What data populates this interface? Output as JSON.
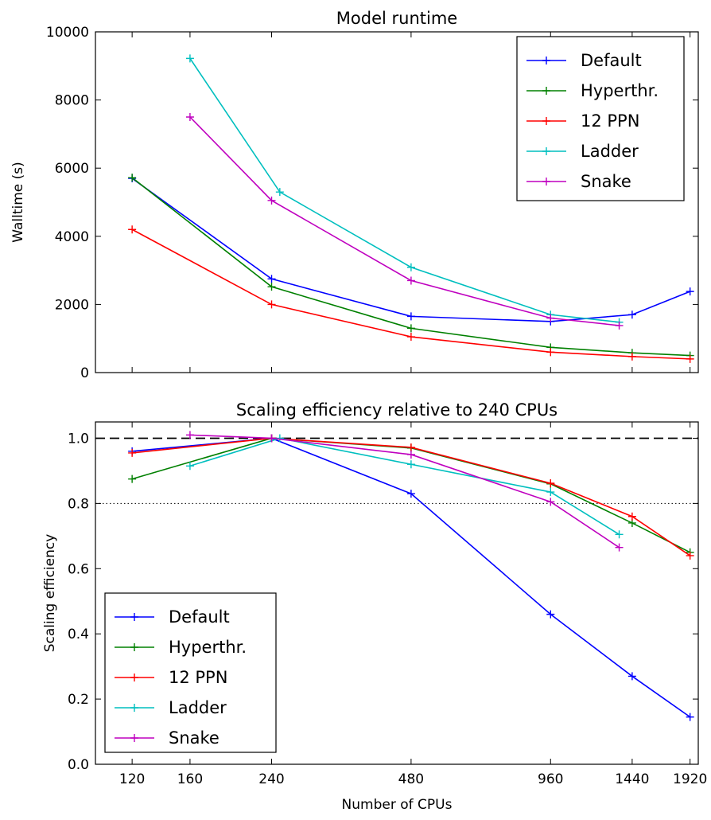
{
  "chart_data": [
    {
      "type": "line",
      "title": "Model runtime",
      "xlabel": "",
      "ylabel": "Walltime (s)",
      "xscale": "log",
      "xlim": [
        100,
        2000
      ],
      "ylim": [
        0,
        10000
      ],
      "xticks": [
        120,
        160,
        240,
        480,
        960,
        1440,
        1920
      ],
      "xticklabels_shown": false,
      "yticks": [
        0,
        2000,
        4000,
        6000,
        8000,
        10000
      ],
      "grid": false,
      "legend": "top-right",
      "series": [
        {
          "name": "Default",
          "color": "#0000ff",
          "x": [
            120,
            240,
            480,
            960,
            1440,
            1920
          ],
          "y": [
            5700,
            2750,
            1650,
            1500,
            1700,
            2380
          ]
        },
        {
          "name": "Hyperthr.",
          "color": "#008000",
          "x": [
            120,
            240,
            480,
            960,
            1440,
            1920
          ],
          "y": [
            5720,
            2520,
            1300,
            740,
            580,
            500
          ]
        },
        {
          "name": "12 PPN",
          "color": "#ff0000",
          "x": [
            120,
            240,
            480,
            960,
            1440,
            1920
          ],
          "y": [
            4200,
            2000,
            1050,
            600,
            470,
            400
          ]
        },
        {
          "name": "Ladder",
          "color": "#00bfbf",
          "x": [
            160,
            250,
            480,
            960,
            1350
          ],
          "y": [
            9220,
            5300,
            3090,
            1700,
            1480
          ]
        },
        {
          "name": "Snake",
          "color": "#bf00bf",
          "x": [
            160,
            240,
            480,
            960,
            1350
          ],
          "y": [
            7500,
            5050,
            2700,
            1600,
            1380
          ]
        }
      ]
    },
    {
      "type": "line",
      "title": "Scaling efficiency relative to 240 CPUs",
      "xlabel": "Number of CPUs",
      "ylabel": "Scaling efficiency",
      "xscale": "log",
      "xlim": [
        100,
        2000
      ],
      "ylim": [
        0.0,
        1.05
      ],
      "xticks": [
        120,
        160,
        240,
        480,
        960,
        1440,
        1920
      ],
      "xticklabels": [
        "120",
        "160",
        "240",
        "480",
        "960",
        "1440",
        "1920"
      ],
      "yticks": [
        0.0,
        0.2,
        0.4,
        0.6,
        0.8,
        1.0
      ],
      "yticklabels": [
        "0.0",
        "0.2",
        "0.4",
        "0.6",
        "0.8",
        "1.0"
      ],
      "reference_lines": [
        {
          "y": 1.0,
          "style": "dashed"
        },
        {
          "y": 0.8,
          "style": "dotted"
        }
      ],
      "grid": false,
      "legend": "bottom-left",
      "series": [
        {
          "name": "Default",
          "color": "#0000ff",
          "x": [
            120,
            240,
            480,
            960,
            1440,
            1920
          ],
          "y": [
            0.96,
            1.0,
            0.83,
            0.46,
            0.27,
            0.145
          ]
        },
        {
          "name": "Hyperthr.",
          "color": "#008000",
          "x": [
            120,
            240,
            480,
            960,
            1440,
            1920
          ],
          "y": [
            0.875,
            1.0,
            0.97,
            0.86,
            0.74,
            0.65
          ]
        },
        {
          "name": "12 PPN",
          "color": "#ff0000",
          "x": [
            120,
            240,
            480,
            960,
            1440,
            1920
          ],
          "y": [
            0.955,
            1.0,
            0.972,
            0.862,
            0.76,
            0.64
          ]
        },
        {
          "name": "Ladder",
          "color": "#00bfbf",
          "x": [
            160,
            250,
            480,
            960,
            1350
          ],
          "y": [
            0.915,
            1.0,
            0.92,
            0.835,
            0.705
          ]
        },
        {
          "name": "Snake",
          "color": "#bf00bf",
          "x": [
            160,
            240,
            480,
            960,
            1350
          ],
          "y": [
            1.01,
            1.0,
            0.95,
            0.805,
            0.665
          ]
        }
      ]
    }
  ]
}
